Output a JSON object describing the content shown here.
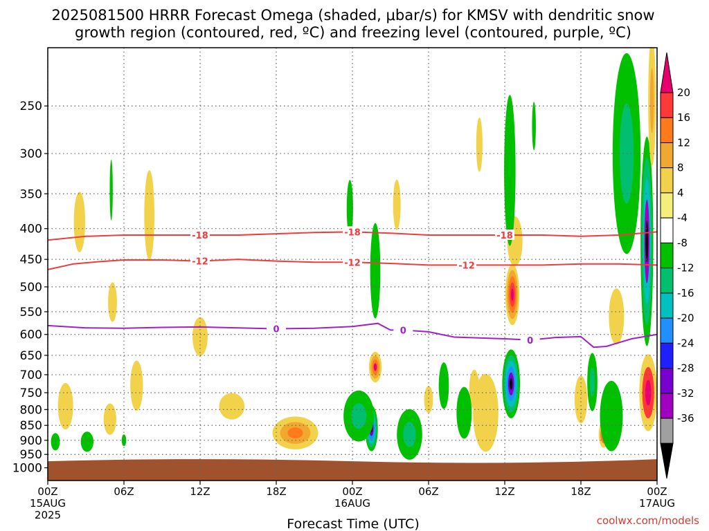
{
  "chart_data": {
    "type": "heatmap",
    "title_line1": "2025081500 HRRR Forecast Omega (shaded, μbar/s) for KMSV with dendritic snow",
    "title_line2": "growth region (contoured, red, ºC) and freezing level (contoured, purple, ºC)",
    "xlabel": "Forecast Time (UTC)",
    "credit": "coolwx.com/models",
    "x_range_hours": [
      0,
      48
    ],
    "x_ticks": [
      {
        "hour": 0,
        "label": "00Z",
        "sub1": "15AUG",
        "sub2": "2025"
      },
      {
        "hour": 6,
        "label": "06Z",
        "sub1": "",
        "sub2": ""
      },
      {
        "hour": 12,
        "label": "12Z",
        "sub1": "",
        "sub2": ""
      },
      {
        "hour": 18,
        "label": "18Z",
        "sub1": "",
        "sub2": ""
      },
      {
        "hour": 24,
        "label": "00Z",
        "sub1": "16AUG",
        "sub2": ""
      },
      {
        "hour": 30,
        "label": "06Z",
        "sub1": "",
        "sub2": ""
      },
      {
        "hour": 36,
        "label": "12Z",
        "sub1": "",
        "sub2": ""
      },
      {
        "hour": 42,
        "label": "18Z",
        "sub1": "",
        "sub2": ""
      },
      {
        "hour": 48,
        "label": "00Z",
        "sub1": "17AUG",
        "sub2": ""
      }
    ],
    "y_axis": "pressure (hPa), reversed",
    "y_range": [
      200,
      1050
    ],
    "y_ticks": [
      250,
      300,
      350,
      400,
      450,
      500,
      550,
      600,
      650,
      700,
      750,
      800,
      850,
      900,
      950,
      1000
    ],
    "grid": true,
    "colorbar": {
      "levels": [
        20,
        16,
        12,
        8,
        4,
        -4,
        -8,
        -12,
        -16,
        -20,
        -24,
        -28,
        -32,
        -36
      ],
      "colors": [
        "#e8006e",
        "#ff3838",
        "#ff7a1a",
        "#f0a830",
        "#f2d24a",
        "#f4ef7a",
        "#ffffff",
        "#00c000",
        "#00c070",
        "#00c0c0",
        "#2090ff",
        "#2020ff",
        "#7a00d0",
        "#a000c0",
        "#a0a0a0",
        "#000000"
      ]
    },
    "series": [
      {
        "name": "-18",
        "color": "#ef3b3b",
        "x": [
          0,
          3,
          6,
          9,
          12,
          15,
          18,
          21,
          24,
          27,
          30,
          33,
          36,
          39,
          42,
          45,
          48
        ],
        "y": [
          418,
          412,
          410,
          410,
          410,
          410,
          408,
          406,
          405,
          407,
          410,
          410,
          410,
          410,
          412,
          410,
          405
        ]
      },
      {
        "name": "-12",
        "color": "#ef3b3b",
        "x": [
          0,
          2,
          4,
          6,
          9,
          12,
          15,
          18,
          21,
          24,
          27,
          30,
          33,
          36,
          39,
          42,
          45,
          48
        ],
        "y": [
          468,
          458,
          454,
          451,
          451,
          453,
          450,
          453,
          455,
          455,
          457,
          460,
          460,
          460,
          460,
          458,
          458,
          460
        ]
      },
      {
        "name": "0",
        "color": "#a020c8",
        "x": [
          0,
          3,
          6,
          9,
          12,
          15,
          18,
          21,
          24,
          26,
          27,
          28,
          30,
          32,
          34,
          36,
          38,
          40,
          42,
          43,
          44,
          46,
          48
        ],
        "y": [
          580,
          585,
          586,
          584,
          583,
          585,
          587,
          586,
          582,
          575,
          590,
          590,
          594,
          606,
          608,
          610,
          613,
          607,
          605,
          630,
          628,
          610,
          600
        ]
      }
    ],
    "shading": [
      {
        "x": 25.5,
        "p": 860,
        "rx": 0.5,
        "rp": 75,
        "colors": [
          "#00c000",
          "#00c070",
          "#00c0c0",
          "#2090ff",
          "#7a00d0",
          "#000000"
        ]
      },
      {
        "x": 36.5,
        "p": 725,
        "rx": 0.7,
        "rp": 95,
        "colors": [
          "#00c000",
          "#00c070",
          "#00c0c0",
          "#2090ff",
          "#7a00d0",
          "#000000"
        ]
      },
      {
        "x": 47.2,
        "p": 420,
        "rx": 0.5,
        "rp": 160,
        "colors": [
          "#00c000",
          "#00c070",
          "#00c0c0",
          "#a000c0",
          "#000000"
        ]
      },
      {
        "x": 36.6,
        "p": 515,
        "rx": 0.55,
        "rp": 60,
        "colors": [
          "#f2d24a",
          "#f0a830",
          "#ff7a1a",
          "#ff3838",
          "#e8006e"
        ]
      },
      {
        "x": 25.8,
        "p": 680,
        "rx": 0.5,
        "rp": 40,
        "colors": [
          "#f2d24a",
          "#f0a830",
          "#ff7a1a",
          "#e8006e"
        ]
      },
      {
        "x": 19.5,
        "p": 875,
        "rx": 1.8,
        "rp": 55,
        "colors": [
          "#f2d24a",
          "#f0a830",
          "#ff7a1a"
        ]
      },
      {
        "x": 47.3,
        "p": 750,
        "rx": 0.7,
        "rp": 110,
        "colors": [
          "#f2d24a",
          "#ff3838",
          "#e8006e"
        ]
      },
      {
        "x": 43.8,
        "p": 880,
        "rx": 0.4,
        "rp": 45,
        "colors": [
          "#f2d24a",
          "#ff7a1a",
          "#ff3838"
        ]
      },
      {
        "x": 2.5,
        "p": 390,
        "rx": 0.45,
        "rp": 45,
        "colors": [
          "#f2d24a"
        ]
      },
      {
        "x": 8.0,
        "p": 380,
        "rx": 0.4,
        "rp": 65,
        "colors": [
          "#f2d24a"
        ]
      },
      {
        "x": 5.1,
        "p": 530,
        "rx": 0.35,
        "rp": 40,
        "colors": [
          "#f2d24a"
        ]
      },
      {
        "x": 7.0,
        "p": 730,
        "rx": 0.5,
        "rp": 70,
        "colors": [
          "#f2d24a"
        ]
      },
      {
        "x": 1.4,
        "p": 790,
        "rx": 0.6,
        "rp": 70,
        "colors": [
          "#f2d24a"
        ]
      },
      {
        "x": 4.9,
        "p": 830,
        "rx": 0.5,
        "rp": 50,
        "colors": [
          "#f2d24a"
        ]
      },
      {
        "x": 12.0,
        "p": 605,
        "rx": 0.6,
        "rp": 45,
        "colors": [
          "#f2d24a"
        ]
      },
      {
        "x": 14.5,
        "p": 790,
        "rx": 1.0,
        "rp": 40,
        "colors": [
          "#f2d24a"
        ]
      },
      {
        "x": 34.5,
        "p": 810,
        "rx": 1.0,
        "rp": 120,
        "colors": [
          "#f2d24a"
        ]
      },
      {
        "x": 36.8,
        "p": 420,
        "rx": 0.6,
        "rp": 40,
        "colors": [
          "#f2d24a"
        ]
      },
      {
        "x": 42.0,
        "p": 770,
        "rx": 0.5,
        "rp": 70,
        "colors": [
          "#f2d24a"
        ]
      },
      {
        "x": 44.8,
        "p": 560,
        "rx": 0.6,
        "rp": 60,
        "colors": [
          "#f2d24a"
        ]
      },
      {
        "x": 30.0,
        "p": 770,
        "rx": 0.35,
        "rp": 40,
        "colors": [
          "#f2d24a"
        ]
      },
      {
        "x": 33.6,
        "p": 740,
        "rx": 0.4,
        "rp": 55,
        "colors": [
          "#f2d24a"
        ]
      },
      {
        "x": 27.5,
        "p": 365,
        "rx": 0.3,
        "rp": 35,
        "colors": [
          "#f2d24a"
        ]
      },
      {
        "x": 34.0,
        "p": 290,
        "rx": 0.25,
        "rp": 30,
        "colors": [
          "#f2d24a"
        ]
      },
      {
        "x": 0.6,
        "p": 905,
        "rx": 0.35,
        "rp": 30,
        "colors": [
          "#00c000"
        ]
      },
      {
        "x": 3.1,
        "p": 905,
        "rx": 0.5,
        "rp": 35,
        "colors": [
          "#00c000"
        ]
      },
      {
        "x": 5.0,
        "p": 345,
        "rx": 0.12,
        "rp": 40,
        "colors": [
          "#00c000"
        ]
      },
      {
        "x": 6.0,
        "p": 900,
        "rx": 0.18,
        "rp": 20,
        "colors": [
          "#00c000"
        ]
      },
      {
        "x": 23.8,
        "p": 370,
        "rx": 0.25,
        "rp": 40,
        "colors": [
          "#00c000"
        ]
      },
      {
        "x": 25.8,
        "p": 470,
        "rx": 0.4,
        "rp": 85,
        "colors": [
          "#00c000"
        ]
      },
      {
        "x": 24.5,
        "p": 820,
        "rx": 1.2,
        "rp": 80,
        "colors": [
          "#00c000",
          "#00c070"
        ]
      },
      {
        "x": 28.5,
        "p": 880,
        "rx": 1.0,
        "rp": 85,
        "colors": [
          "#00c000",
          "#00c070"
        ]
      },
      {
        "x": 31.2,
        "p": 730,
        "rx": 0.4,
        "rp": 65,
        "colors": [
          "#00c000"
        ]
      },
      {
        "x": 32.8,
        "p": 810,
        "rx": 0.6,
        "rp": 80,
        "colors": [
          "#00c000"
        ]
      },
      {
        "x": 36.4,
        "p": 320,
        "rx": 0.45,
        "rp": 90,
        "colors": [
          "#00c000"
        ]
      },
      {
        "x": 38.3,
        "p": 270,
        "rx": 0.15,
        "rp": 25,
        "colors": [
          "#00c000"
        ]
      },
      {
        "x": 42.9,
        "p": 720,
        "rx": 0.4,
        "rp": 80,
        "colors": [
          "#00c000",
          "#00c070"
        ]
      },
      {
        "x": 44.4,
        "p": 820,
        "rx": 0.9,
        "rp": 110,
        "colors": [
          "#00c000"
        ]
      },
      {
        "x": 45.6,
        "p": 300,
        "rx": 1.1,
        "rp": 110,
        "colors": [
          "#00c000",
          "#00c070"
        ]
      },
      {
        "x": 47.6,
        "p": 245,
        "rx": 0.3,
        "rp": 60,
        "colors": [
          "#f2d24a",
          "#f0a830"
        ]
      }
    ],
    "ground": {
      "color": "#a0522d",
      "p": 970
    }
  }
}
